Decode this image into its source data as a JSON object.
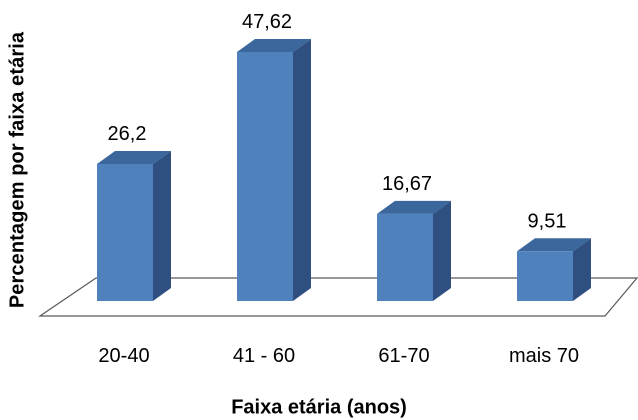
{
  "chart_data": {
    "type": "bar",
    "categories": [
      "20-40",
      "41 - 60",
      "61-70",
      "mais 70"
    ],
    "values": [
      26.2,
      47.62,
      16.67,
      9.51
    ],
    "value_labels": [
      "26,2",
      "47,62",
      "16,67",
      "9,51"
    ],
    "title": "",
    "xlabel": "Faixa etária (anos)",
    "ylabel": "Percentagem por faixa etária",
    "ylim": [
      0,
      50
    ],
    "grid": false,
    "legend": "none",
    "style": "3d-column",
    "colors": {
      "bar_front": "#4f81bd",
      "bar_side": "#2e4f7f",
      "bar_top": "#3b679d",
      "floor_stroke": "#5a5a5a",
      "text": "#000000"
    }
  }
}
